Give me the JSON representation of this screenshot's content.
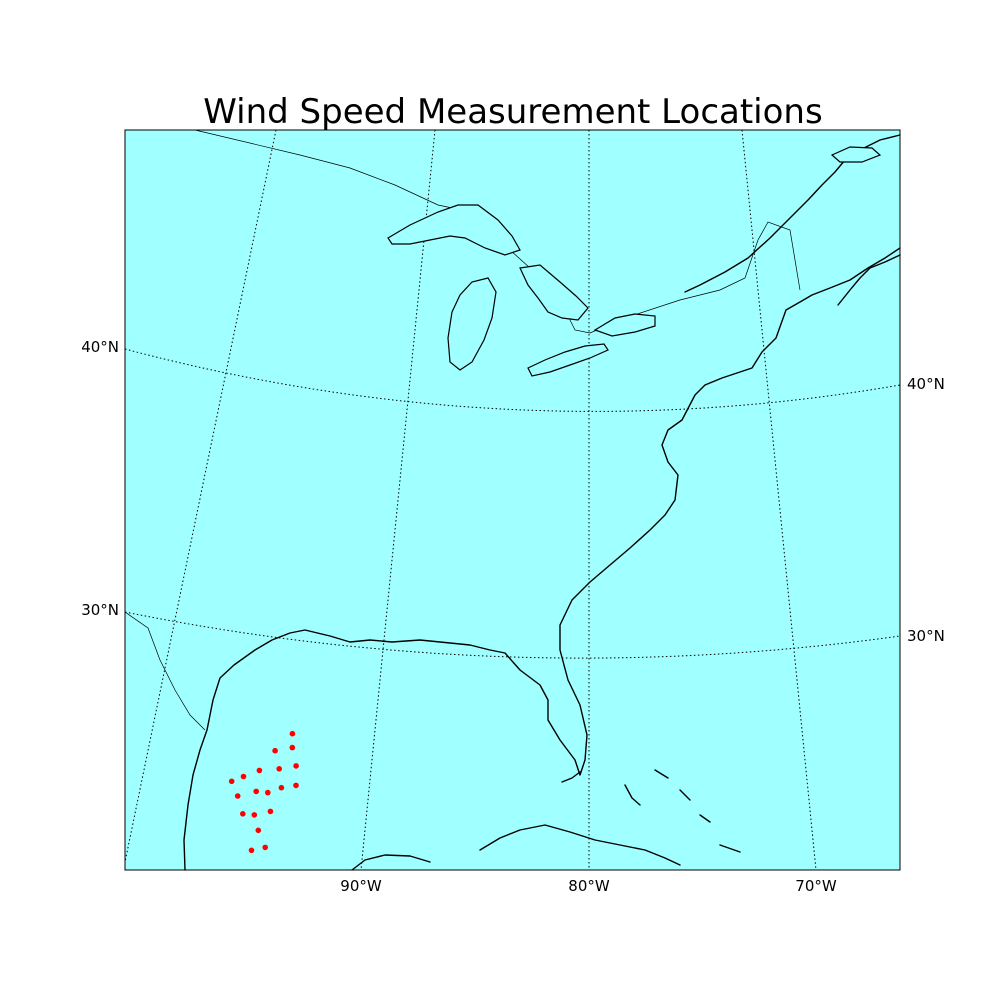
{
  "title": "Wind Speed Measurement Locations",
  "colors": {
    "water": "#a0ffff",
    "land": "#a0ffff",
    "coastline": "#000000",
    "marker": "#ff0000"
  },
  "map": {
    "projection": "lambert-conformal",
    "lat_range": [
      22,
      47
    ],
    "lon_range": [
      -100,
      -66
    ],
    "parallels": [
      30,
      40
    ],
    "meridians": [
      -90,
      -80,
      -70
    ],
    "parallel_labels_left": [
      "30°N",
      "40°N"
    ],
    "parallel_labels_right": [
      "30°N",
      "40°N"
    ],
    "meridian_labels": [
      "90°W",
      "80°W",
      "70°W"
    ],
    "marker_symbol": "red-dot"
  },
  "chart_data": {
    "type": "scatter",
    "title": "Wind Speed Measurement Locations",
    "series": [
      {
        "points": [
          {
            "lon": -93.8,
            "lat": 29.7
          },
          {
            "lon": -94.8,
            "lat": 29.3
          },
          {
            "lon": -94.0,
            "lat": 29.2
          },
          {
            "lon": -97.2,
            "lat": 28.8
          },
          {
            "lon": -96.6,
            "lat": 28.8
          },
          {
            "lon": -95.8,
            "lat": 28.8
          },
          {
            "lon": -94.9,
            "lat": 28.6
          },
          {
            "lon": -94.1,
            "lat": 28.5
          },
          {
            "lon": -97.2,
            "lat": 28.2
          },
          {
            "lon": -96.3,
            "lat": 28.1
          },
          {
            "lon": -95.8,
            "lat": 27.9
          },
          {
            "lon": -95.1,
            "lat": 27.9
          },
          {
            "lon": -94.4,
            "lat": 27.8
          },
          {
            "lon": -97.3,
            "lat": 27.5
          },
          {
            "lon": -96.8,
            "lat": 27.3
          },
          {
            "lon": -96.0,
            "lat": 27.2
          },
          {
            "lon": -96.9,
            "lat": 26.7
          },
          {
            "lon": -97.6,
            "lat": 26.1
          },
          {
            "lon": -96.9,
            "lat": 26.0
          }
        ]
      }
    ]
  }
}
